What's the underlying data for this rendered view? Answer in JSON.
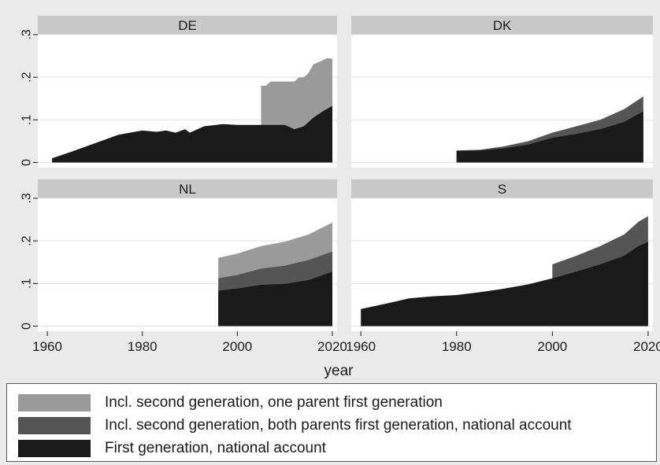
{
  "colors": {
    "background": "#eaeaea",
    "strip": "#c8c8c8",
    "plot": "#ffffff",
    "grid": "#e0e0e0",
    "series": [
      "#9a9a9a",
      "#555555",
      "#1a1a1a"
    ]
  },
  "chart_data": {
    "type": "area",
    "layout": "2x2 panels",
    "title": "",
    "xlabel": "year",
    "ylabel": "",
    "xlim": [
      1958,
      2021
    ],
    "ylim": [
      -0.012,
      0.3
    ],
    "x_ticks": [
      "1960",
      "1980",
      "2000",
      "2020"
    ],
    "y_ticks": [
      "0",
      ".1",
      ".2",
      ".3"
    ],
    "y_tick_values": [
      0,
      0.1,
      0.2,
      0.3
    ],
    "x_tick_values": [
      1960,
      1980,
      2000,
      2020
    ],
    "legend_position": "bottom",
    "legend": [
      "Incl. second generation, one parent first generation",
      "Incl. second generation, both parents first generation, national account",
      "First generation, national account"
    ],
    "panels": [
      {
        "label": "DE",
        "series": [
          {
            "name": "Incl. second generation, one parent first generation",
            "x": [
              2005,
              2006,
              2007,
              2009,
              2012,
              2013,
              2014,
              2015,
              2016,
              2017,
              2018,
              2019,
              2020
            ],
            "y": [
              0.18,
              0.18,
              0.19,
              0.19,
              0.19,
              0.2,
              0.2,
              0.21,
              0.23,
              0.235,
              0.24,
              0.245,
              0.243
            ]
          },
          {
            "name": "First generation, national account",
            "x": [
              1961,
              1965,
              1970,
              1975,
              1980,
              1983,
              1985,
              1987,
              1989,
              1990,
              1993,
              1997,
              2000,
              2005,
              2010,
              2012,
              2014,
              2016,
              2018,
              2020
            ],
            "y": [
              0.01,
              0.025,
              0.045,
              0.065,
              0.075,
              0.072,
              0.075,
              0.07,
              0.078,
              0.07,
              0.085,
              0.09,
              0.088,
              0.088,
              0.088,
              0.078,
              0.085,
              0.105,
              0.12,
              0.133
            ]
          }
        ]
      },
      {
        "label": "DK",
        "series": [
          {
            "name": "Incl. second generation, both parents first generation, national account",
            "x": [
              1980,
              1985,
              1990,
              1995,
              2000,
              2005,
              2010,
              2015,
              2019
            ],
            "y": [
              0.028,
              0.03,
              0.038,
              0.05,
              0.07,
              0.085,
              0.1,
              0.125,
              0.155
            ]
          },
          {
            "name": "First generation, national account",
            "x": [
              1980,
              1985,
              1990,
              1995,
              2000,
              2005,
              2010,
              2015,
              2019
            ],
            "y": [
              0.027,
              0.028,
              0.033,
              0.042,
              0.058,
              0.067,
              0.078,
              0.095,
              0.12
            ]
          }
        ]
      },
      {
        "label": "NL",
        "series": [
          {
            "name": "Incl. second generation, one parent first generation",
            "x": [
              1996,
              2000,
              2005,
              2010,
              2015,
              2020
            ],
            "y": [
              0.16,
              0.17,
              0.188,
              0.198,
              0.215,
              0.243
            ]
          },
          {
            "name": "Incl. second generation, both parents first generation, national account",
            "x": [
              1996,
              2000,
              2005,
              2010,
              2015,
              2020
            ],
            "y": [
              0.112,
              0.12,
              0.135,
              0.142,
              0.155,
              0.175
            ]
          },
          {
            "name": "First generation, national account",
            "x": [
              1996,
              2000,
              2005,
              2010,
              2015,
              2020
            ],
            "y": [
              0.083,
              0.088,
              0.097,
              0.099,
              0.108,
              0.128
            ]
          }
        ]
      },
      {
        "label": "S",
        "series": [
          {
            "name": "Incl. second generation, both parents first generation, national account",
            "x": [
              2000,
              2005,
              2010,
              2015,
              2018,
              2020
            ],
            "y": [
              0.145,
              0.165,
              0.188,
              0.215,
              0.245,
              0.258
            ]
          },
          {
            "name": "First generation, national account",
            "x": [
              1960,
              1965,
              1970,
              1975,
              1980,
              1985,
              1990,
              1995,
              2000,
              2005,
              2010,
              2015,
              2018,
              2020
            ],
            "y": [
              0.04,
              0.052,
              0.065,
              0.07,
              0.073,
              0.08,
              0.088,
              0.098,
              0.112,
              0.128,
              0.145,
              0.165,
              0.188,
              0.198
            ]
          }
        ]
      }
    ]
  }
}
